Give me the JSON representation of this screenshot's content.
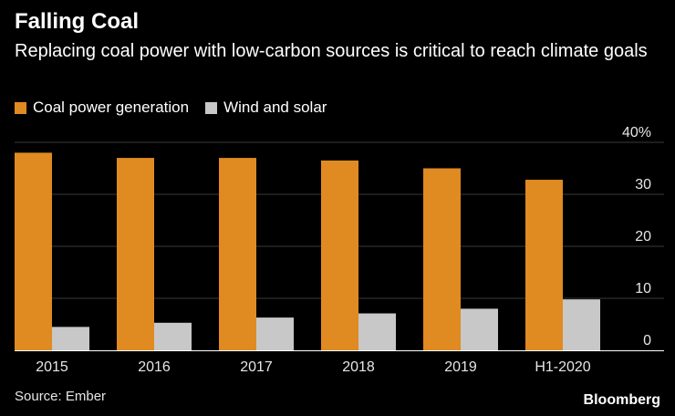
{
  "chart_data": {
    "type": "bar",
    "title": "Falling Coal",
    "subtitle": "Replacing coal power with low-carbon sources is critical to reach climate goals",
    "categories": [
      "2015",
      "2016",
      "2017",
      "2018",
      "2019",
      "H1-2020"
    ],
    "series": [
      {
        "name": "Coal power generation",
        "color": "#e08a22",
        "values": [
          38,
          37,
          37,
          36.5,
          35,
          32.8
        ]
      },
      {
        "name": "Wind and solar",
        "color": "#c8c8c8",
        "values": [
          4.5,
          5.3,
          6.3,
          7.1,
          8,
          9.8
        ]
      }
    ],
    "y_ticks": [
      0,
      10,
      20,
      30,
      40
    ],
    "y_tick_labels": [
      "0",
      "10",
      "20",
      "30",
      "40%"
    ],
    "ylim": [
      0,
      40
    ],
    "y_axis_position": "right",
    "grid": true,
    "legend_position": "top-left",
    "source": "Source: Ember",
    "brand": "Bloomberg",
    "background_color": "#000000",
    "grid_color": "#3a3a3a"
  }
}
